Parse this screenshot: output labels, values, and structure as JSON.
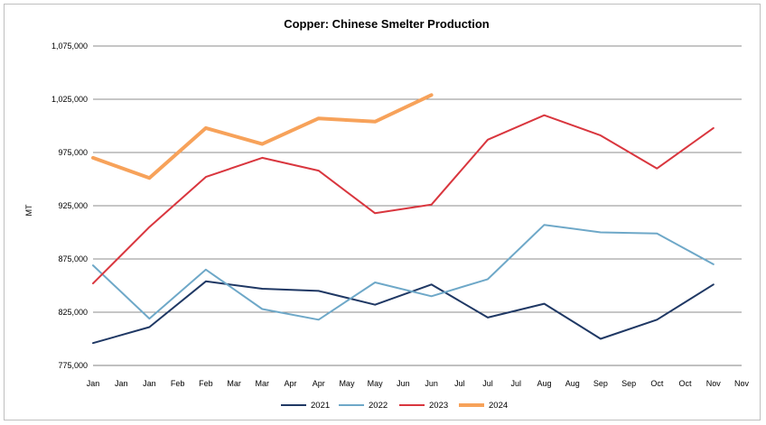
{
  "chart_data": {
    "type": "line",
    "title": "Copper: Chinese Smelter Production",
    "ylabel": "MT",
    "xlabel": "",
    "ylim": [
      775000,
      1075000
    ],
    "yticks": [
      775000,
      825000,
      875000,
      925000,
      975000,
      1025000,
      1075000
    ],
    "ytick_labels": [
      "775,000",
      "825,000",
      "875,000",
      "925,000",
      "975,000",
      "1,025,000",
      "1,075,000"
    ],
    "x_labels": [
      "Jan",
      "Jan",
      "Jan",
      "Feb",
      "Feb",
      "Mar",
      "Mar",
      "Apr",
      "Apr",
      "May",
      "May",
      "Jun",
      "Jun",
      "Jul",
      "Jul",
      "Jul",
      "Aug",
      "Aug",
      "Sep",
      "Sep",
      "Oct",
      "Oct",
      "Nov",
      "Nov"
    ],
    "grid": true,
    "legend_position": "bottom",
    "series": [
      {
        "name": "2021",
        "color": "#1f3864",
        "points": [
          [
            0,
            796000
          ],
          [
            2,
            811000
          ],
          [
            4,
            854000
          ],
          [
            6,
            847000
          ],
          [
            8,
            845000
          ],
          [
            10,
            832000
          ],
          [
            12,
            851000
          ],
          [
            14,
            820000
          ],
          [
            16,
            833000
          ],
          [
            18,
            800000
          ],
          [
            20,
            818000
          ],
          [
            22,
            851000
          ]
        ]
      },
      {
        "name": "2022",
        "color": "#6ea8c8",
        "points": [
          [
            0,
            869000
          ],
          [
            2,
            819000
          ],
          [
            4,
            865000
          ],
          [
            6,
            828000
          ],
          [
            8,
            818000
          ],
          [
            10,
            853000
          ],
          [
            12,
            840000
          ],
          [
            14,
            856000
          ],
          [
            16,
            907000
          ],
          [
            18,
            900000
          ],
          [
            20,
            899000
          ],
          [
            22,
            870000
          ]
        ]
      },
      {
        "name": "2023",
        "color": "#d9363e",
        "points": [
          [
            0,
            852000
          ],
          [
            2,
            905000
          ],
          [
            4,
            952000
          ],
          [
            6,
            970000
          ],
          [
            8,
            958000
          ],
          [
            10,
            918000
          ],
          [
            12,
            926000
          ],
          [
            14,
            987000
          ],
          [
            16,
            1010000
          ],
          [
            18,
            991000
          ],
          [
            20,
            960000
          ],
          [
            22,
            998000
          ]
        ]
      },
      {
        "name": "2024",
        "color": "#f7a25a",
        "points": [
          [
            0,
            970000
          ],
          [
            2,
            951000
          ],
          [
            4,
            998000
          ],
          [
            6,
            983000
          ],
          [
            8,
            1007000
          ],
          [
            10,
            1004000
          ],
          [
            12,
            1029000
          ]
        ]
      }
    ]
  }
}
